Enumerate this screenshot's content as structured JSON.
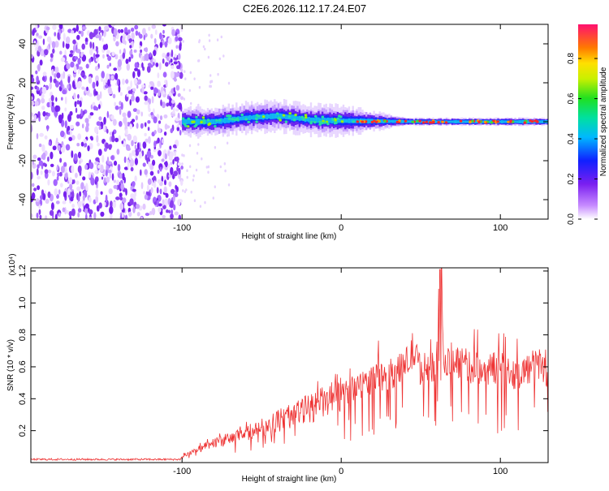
{
  "title": "C2E6.2026.112.17.24.E07",
  "chart_data": [
    {
      "type": "heatmap",
      "title": "C2E6.2026.112.17.24.E07",
      "xlabel": "Height of straight line (km)",
      "ylabel": "Frequency (Hz)",
      "xlim": [
        -195,
        130
      ],
      "ylim": [
        -50,
        50
      ],
      "x_ticks": [
        -100,
        0,
        100
      ],
      "x_tick_labels": [
        "-100",
        "0",
        "100"
      ],
      "y_ticks": [
        -40,
        -20,
        0,
        20,
        40
      ],
      "y_tick_labels": [
        "-40",
        "-20",
        "0",
        "20",
        "40"
      ],
      "noise_region_x": [
        -195,
        -100
      ],
      "signal_band_center_hz": [
        {
          "x": -100,
          "y": 0
        },
        {
          "x": -80,
          "y": 0
        },
        {
          "x": -60,
          "y": 2
        },
        {
          "x": -40,
          "y": 3
        },
        {
          "x": -20,
          "y": 1
        },
        {
          "x": 0,
          "y": 0.5
        },
        {
          "x": 50,
          "y": 0
        },
        {
          "x": 130,
          "y": 0
        }
      ],
      "colorbar": {
        "label": "Normalized spectral amplitude",
        "range": [
          0.0,
          0.97
        ],
        "ticks": [
          0.0,
          0.2,
          0.4,
          0.6,
          0.8
        ],
        "tick_labels": [
          "0.0",
          "0.2",
          "0.4",
          "0.6",
          "0.8"
        ]
      }
    },
    {
      "type": "line",
      "xlabel": "Height of straight line (km)",
      "ylabel": "SNR (10 * v/v)",
      "scale_label": "(x10⁴)",
      "xlim": [
        -195,
        130
      ],
      "ylim": [
        0,
        1.22
      ],
      "x_ticks": [
        -100,
        0,
        100
      ],
      "x_tick_labels": [
        "-100",
        "0",
        "100"
      ],
      "y_ticks": [
        0.2,
        0.4,
        0.6,
        0.8,
        1.0,
        1.2
      ],
      "y_tick_labels": [
        "0.2",
        "0.4",
        "0.6",
        "0.8",
        "1.0",
        "1.2"
      ],
      "series": [
        {
          "name": "SNR",
          "color": "#ee3333",
          "x": [
            -195,
            -150,
            -101,
            -98,
            -90,
            -80,
            -70,
            -60,
            -50,
            -40,
            -30,
            -20,
            -10,
            0,
            10,
            20,
            30,
            40,
            45,
            50,
            55,
            60,
            62,
            65,
            70,
            80,
            90,
            100,
            110,
            120,
            125,
            130
          ],
          "y": [
            0.02,
            0.02,
            0.02,
            0.05,
            0.08,
            0.12,
            0.15,
            0.18,
            0.22,
            0.26,
            0.3,
            0.34,
            0.38,
            0.42,
            0.48,
            0.52,
            0.55,
            0.6,
            0.7,
            0.58,
            0.6,
            0.62,
            1.2,
            0.58,
            0.66,
            0.6,
            0.58,
            0.6,
            0.55,
            0.6,
            0.62,
            0.55
          ]
        }
      ]
    }
  ],
  "colors": {
    "signal_line": "#ee3333",
    "noise_dots": "#8a3df0"
  }
}
